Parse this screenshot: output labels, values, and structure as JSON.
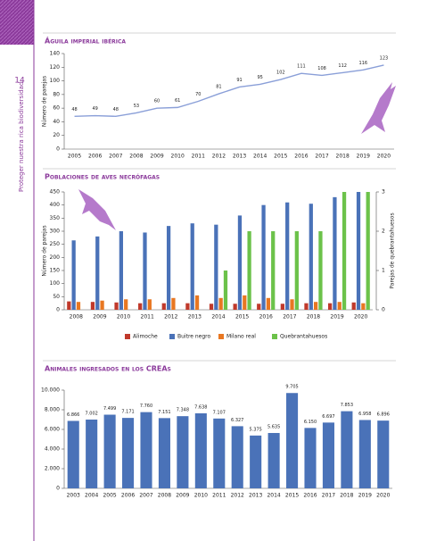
{
  "page_number": "14",
  "side_text": "Proteger nuestra rica biodiversidad",
  "chart_data": [
    {
      "type": "line",
      "title": "Águila imperial ibérica",
      "y_label": "Número de parejas",
      "categories": [
        "2005",
        "2006",
        "2007",
        "2008",
        "2009",
        "2010",
        "2011",
        "2012",
        "2013",
        "2014",
        "2015",
        "2016",
        "2017",
        "2018",
        "2019",
        "2020"
      ],
      "values": [
        48,
        49,
        48,
        53,
        60,
        61,
        70,
        81,
        91,
        95,
        102,
        111,
        108,
        112,
        116,
        123
      ],
      "color": "#8a9fd8",
      "ylim": [
        0,
        140
      ],
      "yticks": [
        0,
        20,
        40,
        60,
        80,
        100,
        120,
        140
      ],
      "grid": false
    },
    {
      "type": "bar",
      "title": "Poblaciones de aves necrófagas",
      "y_label": "Número de parejas",
      "y2_label": "Parejas de quebrantahuesos",
      "categories": [
        "2008",
        "2009",
        "2010",
        "2011",
        "2012",
        "2013",
        "2014",
        "2015",
        "2016",
        "2017",
        "2018",
        "2019",
        "2020"
      ],
      "series": [
        {
          "name": "Alimoche",
          "color": "#c0392b",
          "values": [
            32,
            30,
            28,
            25,
            25,
            25,
            23,
            23,
            23,
            23,
            25,
            25,
            28
          ]
        },
        {
          "name": "Buitre negro",
          "color": "#4a72b8",
          "values": [
            265,
            280,
            300,
            295,
            320,
            330,
            325,
            360,
            400,
            410,
            405,
            430,
            450
          ]
        },
        {
          "name": "Milano real",
          "color": "#e87722",
          "values": [
            30,
            35,
            40,
            40,
            45,
            55,
            45,
            55,
            45,
            40,
            30,
            30,
            25
          ]
        },
        {
          "name": "Quebrantahuesos",
          "color": "#6cc24a",
          "axis": "y2",
          "values": [
            null,
            null,
            null,
            null,
            null,
            null,
            1,
            2,
            2,
            2,
            2,
            3,
            3
          ]
        }
      ],
      "ylim": [
        0,
        450
      ],
      "yticks": [
        0,
        50,
        100,
        150,
        200,
        250,
        300,
        350,
        400,
        450
      ],
      "y2lim": [
        0,
        3
      ],
      "y2ticks": [
        0,
        1,
        2,
        3
      ],
      "legend": "bottom",
      "grid": false
    },
    {
      "type": "bar",
      "title": "Animales ingresados en los CREAs",
      "categories": [
        "2003",
        "2004",
        "2005",
        "2006",
        "2007",
        "2008",
        "2009",
        "2010",
        "2011",
        "2012",
        "2013",
        "2014",
        "2015",
        "2016",
        "2017",
        "2018",
        "2019",
        "2020"
      ],
      "values": [
        6866,
        7002,
        7499,
        7171,
        7760,
        7151,
        7348,
        7638,
        7107,
        6327,
        5375,
        5635,
        9705,
        6150,
        6697,
        7853,
        6958,
        6896
      ],
      "value_labels": [
        "6.866",
        "7.002",
        "7.499",
        "7.171",
        "7.760",
        "7.151",
        "7.348",
        "7.638",
        "7.107",
        "6.327",
        "5.375",
        "5.635",
        "9.705",
        "6.150",
        "6.697",
        "7.853",
        "6.958",
        "6.896"
      ],
      "color": "#4a72b8",
      "ylim": [
        0,
        10000
      ],
      "yticks": [
        0,
        {
          "value": 2000,
          "label": "2.000"
        },
        {
          "value": 4000,
          "label": "4.000"
        },
        {
          "value": 6000,
          "label": "6.000"
        },
        {
          "value": 8000,
          "label": "8.000"
        },
        {
          "value": 10000,
          "label": "10.000"
        }
      ],
      "grid": false
    }
  ]
}
